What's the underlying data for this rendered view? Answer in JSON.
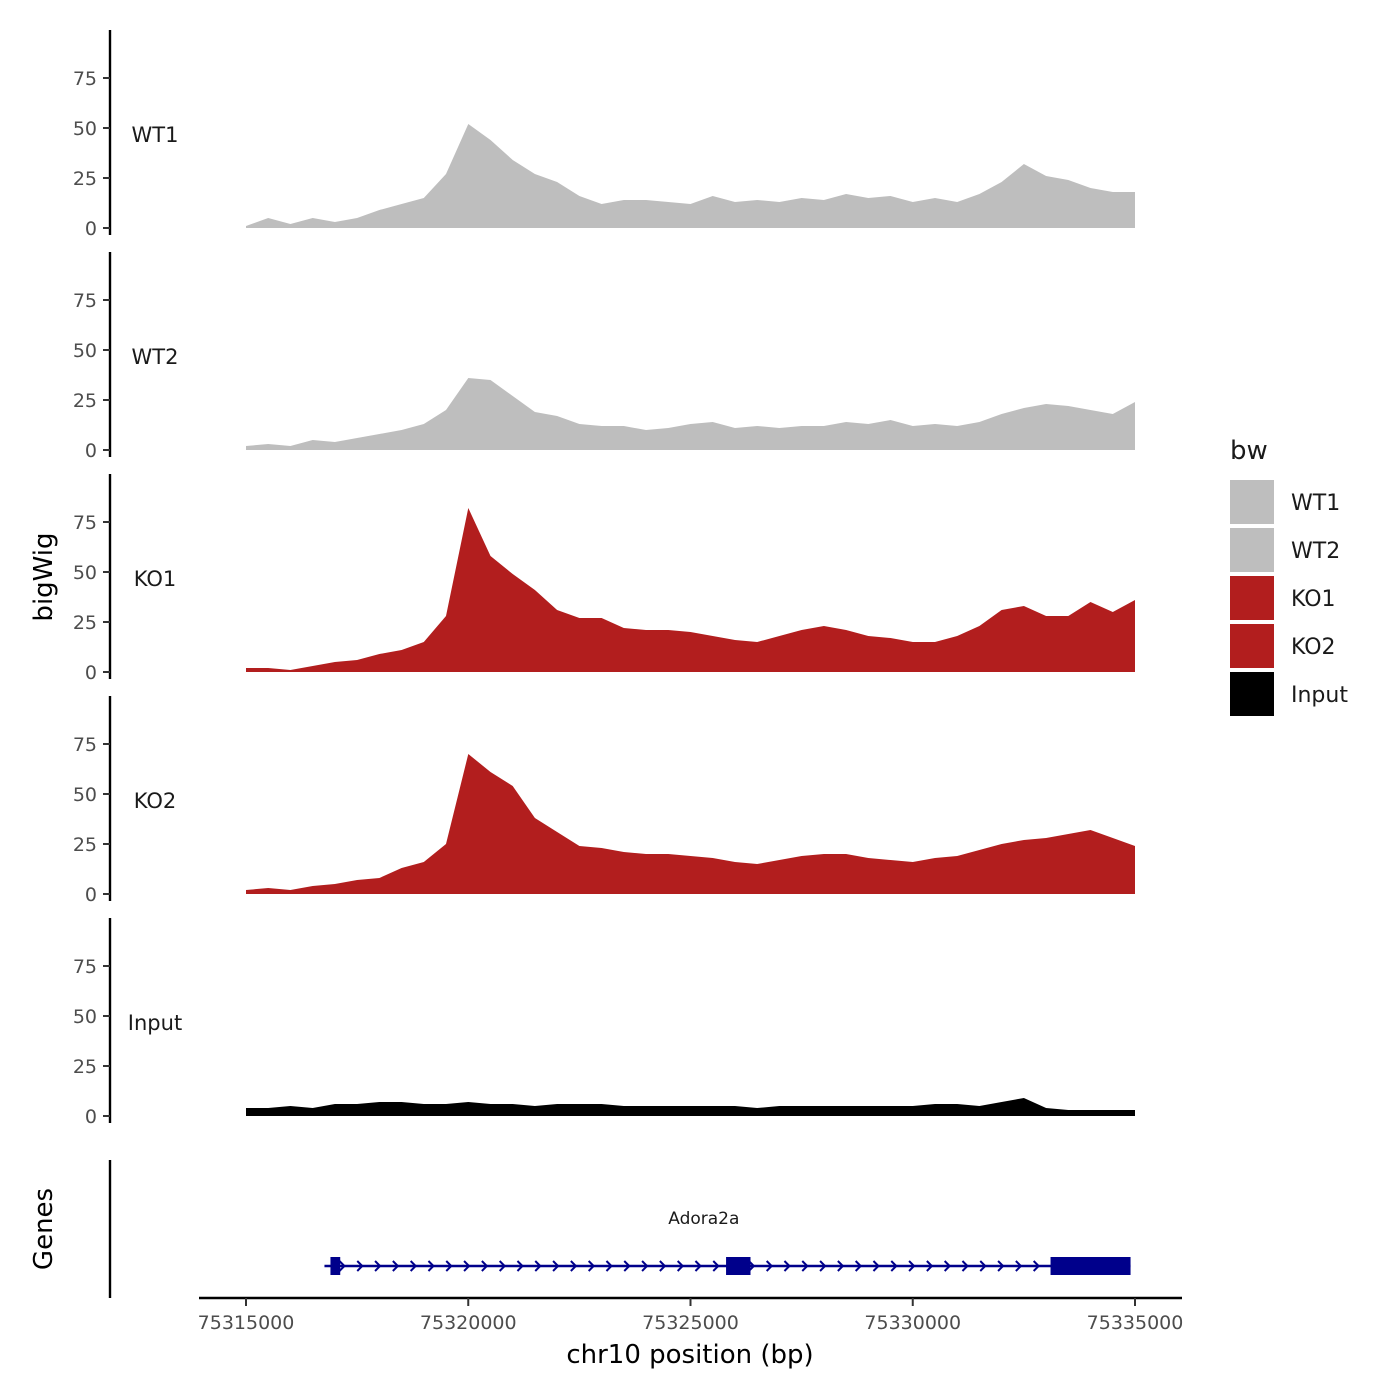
{
  "chart_data": {
    "type": "area",
    "ylabel": "bigWig",
    "xlabel": "chr10 position (bp)",
    "xlim": [
      75315000,
      75335000
    ],
    "ylim": [
      0,
      100
    ],
    "y_ticks": [
      "0",
      "25",
      "50",
      "75"
    ],
    "x_ticks": [
      "75315000",
      "75320000",
      "75325000",
      "75330000",
      "75335000"
    ],
    "x_tick_values": [
      75315000,
      75320000,
      75325000,
      75330000,
      75335000
    ],
    "series": [
      {
        "name": "WT1",
        "color": "#BEBEBE",
        "values": [
          [
            75315000,
            1
          ],
          [
            75315500,
            5
          ],
          [
            75316000,
            2
          ],
          [
            75316500,
            5
          ],
          [
            75317000,
            3
          ],
          [
            75317500,
            5
          ],
          [
            75318000,
            9
          ],
          [
            75318500,
            12
          ],
          [
            75319000,
            15
          ],
          [
            75319500,
            27
          ],
          [
            75320000,
            52
          ],
          [
            75320500,
            44
          ],
          [
            75321000,
            34
          ],
          [
            75321500,
            27
          ],
          [
            75322000,
            23
          ],
          [
            75322500,
            16
          ],
          [
            75323000,
            12
          ],
          [
            75323500,
            14
          ],
          [
            75324000,
            14
          ],
          [
            75324500,
            13
          ],
          [
            75325000,
            12
          ],
          [
            75325500,
            16
          ],
          [
            75326000,
            13
          ],
          [
            75326500,
            14
          ],
          [
            75327000,
            13
          ],
          [
            75327500,
            15
          ],
          [
            75328000,
            14
          ],
          [
            75328500,
            17
          ],
          [
            75329000,
            15
          ],
          [
            75329500,
            16
          ],
          [
            75330000,
            13
          ],
          [
            75330500,
            15
          ],
          [
            75331000,
            13
          ],
          [
            75331500,
            17
          ],
          [
            75332000,
            23
          ],
          [
            75332500,
            32
          ],
          [
            75333000,
            26
          ],
          [
            75333500,
            24
          ],
          [
            75334000,
            20
          ],
          [
            75334500,
            18
          ],
          [
            75335000,
            18
          ]
        ]
      },
      {
        "name": "WT2",
        "color": "#BEBEBE",
        "values": [
          [
            75315000,
            2
          ],
          [
            75315500,
            3
          ],
          [
            75316000,
            2
          ],
          [
            75316500,
            5
          ],
          [
            75317000,
            4
          ],
          [
            75317500,
            6
          ],
          [
            75318000,
            8
          ],
          [
            75318500,
            10
          ],
          [
            75319000,
            13
          ],
          [
            75319500,
            20
          ],
          [
            75320000,
            36
          ],
          [
            75320500,
            35
          ],
          [
            75321000,
            27
          ],
          [
            75321500,
            19
          ],
          [
            75322000,
            17
          ],
          [
            75322500,
            13
          ],
          [
            75323000,
            12
          ],
          [
            75323500,
            12
          ],
          [
            75324000,
            10
          ],
          [
            75324500,
            11
          ],
          [
            75325000,
            13
          ],
          [
            75325500,
            14
          ],
          [
            75326000,
            11
          ],
          [
            75326500,
            12
          ],
          [
            75327000,
            11
          ],
          [
            75327500,
            12
          ],
          [
            75328000,
            12
          ],
          [
            75328500,
            14
          ],
          [
            75329000,
            13
          ],
          [
            75329500,
            15
          ],
          [
            75330000,
            12
          ],
          [
            75330500,
            13
          ],
          [
            75331000,
            12
          ],
          [
            75331500,
            14
          ],
          [
            75332000,
            18
          ],
          [
            75332500,
            21
          ],
          [
            75333000,
            23
          ],
          [
            75333500,
            22
          ],
          [
            75334000,
            20
          ],
          [
            75334500,
            18
          ],
          [
            75335000,
            24
          ]
        ]
      },
      {
        "name": "KO1",
        "color": "#B21E1E",
        "values": [
          [
            75315000,
            2
          ],
          [
            75315500,
            2
          ],
          [
            75316000,
            1
          ],
          [
            75316500,
            3
          ],
          [
            75317000,
            5
          ],
          [
            75317500,
            6
          ],
          [
            75318000,
            9
          ],
          [
            75318500,
            11
          ],
          [
            75319000,
            15
          ],
          [
            75319500,
            28
          ],
          [
            75320000,
            82
          ],
          [
            75320500,
            58
          ],
          [
            75321000,
            49
          ],
          [
            75321500,
            41
          ],
          [
            75322000,
            31
          ],
          [
            75322500,
            27
          ],
          [
            75323000,
            27
          ],
          [
            75323500,
            22
          ],
          [
            75324000,
            21
          ],
          [
            75324500,
            21
          ],
          [
            75325000,
            20
          ],
          [
            75325500,
            18
          ],
          [
            75326000,
            16
          ],
          [
            75326500,
            15
          ],
          [
            75327000,
            18
          ],
          [
            75327500,
            21
          ],
          [
            75328000,
            23
          ],
          [
            75328500,
            21
          ],
          [
            75329000,
            18
          ],
          [
            75329500,
            17
          ],
          [
            75330000,
            15
          ],
          [
            75330500,
            15
          ],
          [
            75331000,
            18
          ],
          [
            75331500,
            23
          ],
          [
            75332000,
            31
          ],
          [
            75332500,
            33
          ],
          [
            75333000,
            28
          ],
          [
            75333500,
            28
          ],
          [
            75334000,
            35
          ],
          [
            75334500,
            30
          ],
          [
            75335000,
            36
          ]
        ]
      },
      {
        "name": "KO2",
        "color": "#B21E1E",
        "values": [
          [
            75315000,
            2
          ],
          [
            75315500,
            3
          ],
          [
            75316000,
            2
          ],
          [
            75316500,
            4
          ],
          [
            75317000,
            5
          ],
          [
            75317500,
            7
          ],
          [
            75318000,
            8
          ],
          [
            75318500,
            13
          ],
          [
            75319000,
            16
          ],
          [
            75319500,
            25
          ],
          [
            75320000,
            70
          ],
          [
            75320500,
            61
          ],
          [
            75321000,
            54
          ],
          [
            75321500,
            38
          ],
          [
            75322000,
            31
          ],
          [
            75322500,
            24
          ],
          [
            75323000,
            23
          ],
          [
            75323500,
            21
          ],
          [
            75324000,
            20
          ],
          [
            75324500,
            20
          ],
          [
            75325000,
            19
          ],
          [
            75325500,
            18
          ],
          [
            75326000,
            16
          ],
          [
            75326500,
            15
          ],
          [
            75327000,
            17
          ],
          [
            75327500,
            19
          ],
          [
            75328000,
            20
          ],
          [
            75328500,
            20
          ],
          [
            75329000,
            18
          ],
          [
            75329500,
            17
          ],
          [
            75330000,
            16
          ],
          [
            75330500,
            18
          ],
          [
            75331000,
            19
          ],
          [
            75331500,
            22
          ],
          [
            75332000,
            25
          ],
          [
            75332500,
            27
          ],
          [
            75333000,
            28
          ],
          [
            75333500,
            30
          ],
          [
            75334000,
            32
          ],
          [
            75334500,
            28
          ],
          [
            75335000,
            24
          ]
        ]
      },
      {
        "name": "Input",
        "color": "#000000",
        "values": [
          [
            75315000,
            4
          ],
          [
            75315500,
            4
          ],
          [
            75316000,
            5
          ],
          [
            75316500,
            4
          ],
          [
            75317000,
            6
          ],
          [
            75317500,
            6
          ],
          [
            75318000,
            7
          ],
          [
            75318500,
            7
          ],
          [
            75319000,
            6
          ],
          [
            75319500,
            6
          ],
          [
            75320000,
            7
          ],
          [
            75320500,
            6
          ],
          [
            75321000,
            6
          ],
          [
            75321500,
            5
          ],
          [
            75322000,
            6
          ],
          [
            75322500,
            6
          ],
          [
            75323000,
            6
          ],
          [
            75323500,
            5
          ],
          [
            75324000,
            5
          ],
          [
            75324500,
            5
          ],
          [
            75325000,
            5
          ],
          [
            75325500,
            5
          ],
          [
            75326000,
            5
          ],
          [
            75326500,
            4
          ],
          [
            75327000,
            5
          ],
          [
            75327500,
            5
          ],
          [
            75328000,
            5
          ],
          [
            75328500,
            5
          ],
          [
            75329000,
            5
          ],
          [
            75329500,
            5
          ],
          [
            75330000,
            5
          ],
          [
            75330500,
            6
          ],
          [
            75331000,
            6
          ],
          [
            75331500,
            5
          ],
          [
            75332000,
            7
          ],
          [
            75332500,
            9
          ],
          [
            75333000,
            4
          ],
          [
            75333500,
            3
          ],
          [
            75334000,
            3
          ],
          [
            75334500,
            3
          ],
          [
            75335000,
            3
          ]
        ]
      }
    ],
    "legend": {
      "title": "bw",
      "position": "right"
    },
    "genes": {
      "panel_label": "Genes",
      "items": [
        {
          "name": "Adora2a",
          "strand": "+",
          "color": "#00008B",
          "start": 75316900,
          "end": 75334900,
          "exons": [
            [
              75316900,
              75317120
            ],
            [
              75325800,
              75326350
            ],
            [
              75333100,
              75334900
            ]
          ]
        }
      ]
    }
  }
}
